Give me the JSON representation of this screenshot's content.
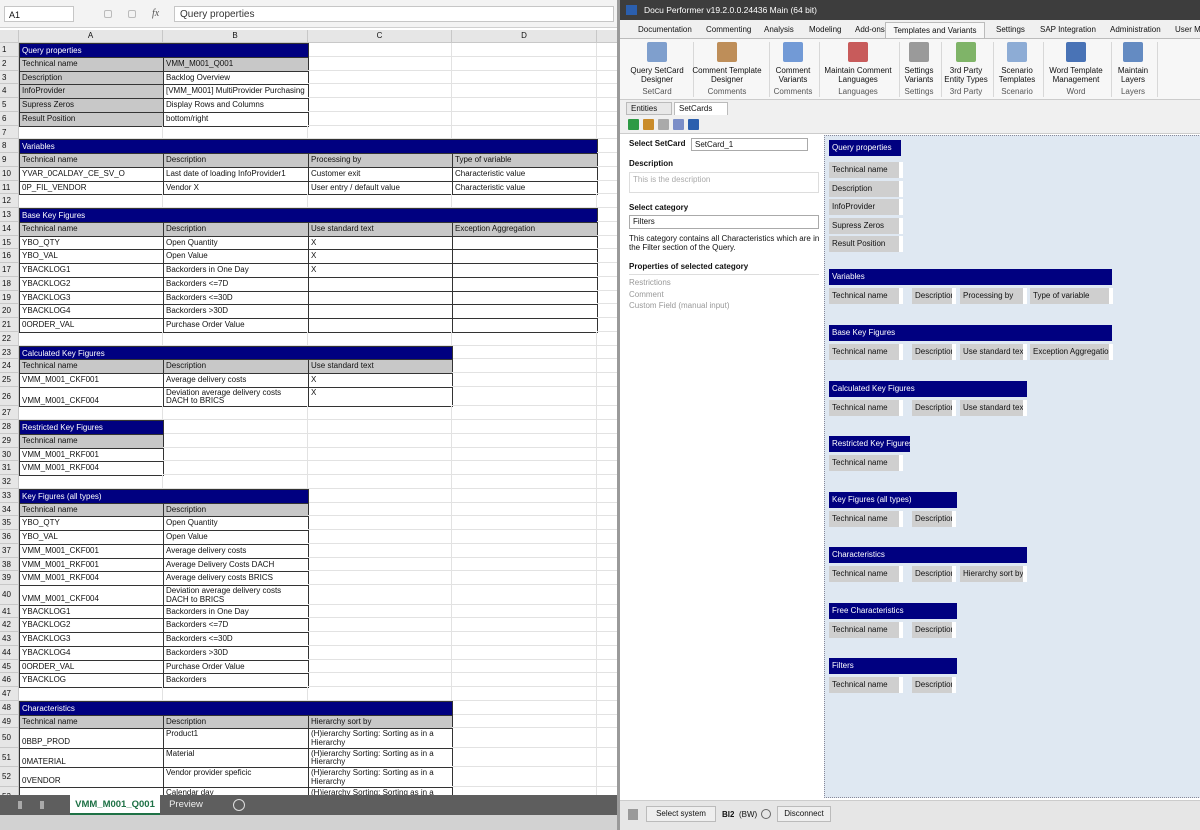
{
  "excel": {
    "name_box": "A1",
    "fx": "fx",
    "formula": "Query properties",
    "columns": [
      "A",
      "B",
      "C",
      "D"
    ],
    "rows": [
      {
        "num": 1,
        "cells": [
          "Query properties"
        ]
      },
      {
        "num": 2,
        "cells": [
          "Technical name",
          "VMM_M001_Q001"
        ]
      },
      {
        "num": 3,
        "cells": [
          "Description",
          "Backlog Overview"
        ]
      },
      {
        "num": 4,
        "cells": [
          "InfoProvider",
          "[VMM_M001] MultiProvider Purchasing"
        ]
      },
      {
        "num": 5,
        "cells": [
          "Supress Zeros",
          "Display Rows and Columns"
        ]
      },
      {
        "num": 6,
        "cells": [
          "Result Position",
          "bottom/right"
        ]
      },
      {
        "num": 7
      },
      {
        "num": 8,
        "cells": [
          "Variables"
        ]
      },
      {
        "num": 9,
        "cells": [
          "Technical name",
          "Description",
          "Processing by",
          "Type of variable"
        ]
      },
      {
        "num": 10,
        "cells": [
          "YVAR_0CALDAY_CE_SV_O",
          "Last date of loading InfoProvider1",
          "Customer exit",
          "Characteristic value"
        ]
      },
      {
        "num": 11,
        "cells": [
          "0P_FIL_VENDOR",
          "Vendor X",
          "User entry / default value",
          "Characteristic value"
        ]
      },
      {
        "num": 12
      },
      {
        "num": 13,
        "cells": [
          "Base Key Figures"
        ]
      },
      {
        "num": 14,
        "cells": [
          "Technical name",
          "Description",
          "Use standard text",
          "Exception Aggregation"
        ]
      },
      {
        "num": 15,
        "cells": [
          "YBO_QTY",
          "Open Quantity",
          "X"
        ]
      },
      {
        "num": 16,
        "cells": [
          "YBO_VAL",
          "Open Value",
          "X"
        ]
      },
      {
        "num": 17,
        "cells": [
          "YBACKLOG1",
          "Backorders in One Day",
          "X"
        ]
      },
      {
        "num": 18,
        "cells": [
          "YBACKLOG2",
          "Backorders <=7D"
        ]
      },
      {
        "num": 19,
        "cells": [
          "YBACKLOG3",
          "Backorders <=30D"
        ]
      },
      {
        "num": 20,
        "cells": [
          "YBACKLOG4",
          "Backorders >30D"
        ]
      },
      {
        "num": 21,
        "cells": [
          "0ORDER_VAL",
          "Purchase Order Value"
        ]
      },
      {
        "num": 22
      },
      {
        "num": 23,
        "cells": [
          "Calculated Key Figures"
        ]
      },
      {
        "num": 24,
        "cells": [
          "Technical name",
          "Description",
          "Use standard text"
        ]
      },
      {
        "num": 25,
        "cells": [
          "VMM_M001_CKF001",
          "Average delivery costs",
          "X"
        ]
      },
      {
        "num": 26,
        "cells": [
          "VMM_M001_CKF004",
          "Deviation average delivery costs DACH to BRICS",
          "X"
        ]
      },
      {
        "num": 27
      },
      {
        "num": 28,
        "cells": [
          "Restricted Key Figures"
        ]
      },
      {
        "num": 29,
        "cells": [
          "Technical name"
        ]
      },
      {
        "num": 30,
        "cells": [
          "VMM_M001_RKF001"
        ]
      },
      {
        "num": 31,
        "cells": [
          "VMM_M001_RKF004"
        ]
      },
      {
        "num": 32
      },
      {
        "num": 33,
        "cells": [
          "Key Figures (all types)"
        ]
      },
      {
        "num": 34,
        "cells": [
          "Technical name",
          "Description"
        ]
      },
      {
        "num": 35,
        "cells": [
          "YBO_QTY",
          "Open Quantity"
        ]
      },
      {
        "num": 36,
        "cells": [
          "YBO_VAL",
          "Open Value"
        ]
      },
      {
        "num": 37,
        "cells": [
          "VMM_M001_CKF001",
          "Average delivery costs"
        ]
      },
      {
        "num": 38,
        "cells": [
          "VMM_M001_RKF001",
          "Average Delivery Costs DACH"
        ]
      },
      {
        "num": 39,
        "cells": [
          "VMM_M001_RKF004",
          "Average delivery costs BRICS"
        ]
      },
      {
        "num": 40,
        "cells": [
          "VMM_M001_CKF004",
          "Deviation average delivery costs DACH to BRICS"
        ]
      },
      {
        "num": 41,
        "cells": [
          "YBACKLOG1",
          "Backorders in One Day"
        ]
      },
      {
        "num": 42,
        "cells": [
          "YBACKLOG2",
          "Backorders <=7D"
        ]
      },
      {
        "num": 43,
        "cells": [
          "YBACKLOG3",
          "Backorders <=30D"
        ]
      },
      {
        "num": 44,
        "cells": [
          "YBACKLOG4",
          "Backorders >30D"
        ]
      },
      {
        "num": 45,
        "cells": [
          "0ORDER_VAL",
          "Purchase Order Value"
        ]
      },
      {
        "num": 46,
        "cells": [
          "YBACKLOG",
          "Backorders"
        ]
      },
      {
        "num": 47
      },
      {
        "num": 48,
        "cells": [
          "Characteristics"
        ]
      },
      {
        "num": 49,
        "cells": [
          "Technical name",
          "Description",
          "Hierarchy sort by"
        ]
      },
      {
        "num": 50,
        "cells": [
          "0BBP_PROD",
          "Product1",
          "(H)ierarchy Sorting: Sorting as in a Hierarchy"
        ]
      },
      {
        "num": 51,
        "cells": [
          "0MATERIAL",
          "Material",
          "(H)ierarchy Sorting: Sorting as in a Hierarchy"
        ]
      },
      {
        "num": 52,
        "cells": [
          "0VENDOR",
          "Vendor provider speficic",
          "(H)ierarchy Sorting: Sorting as in a Hierarchy"
        ]
      },
      {
        "num": 53,
        "cells": [
          "0CALDAY",
          "Calendar day",
          "(H)ierarchy Sorting: Sorting as in a Hierarchy"
        ]
      }
    ],
    "sheet_tabs": [
      "VMM_M001_Q001",
      "Preview"
    ]
  },
  "app": {
    "title": "Docu Performer  v19.2.0.0.24436 Main (64 bit)",
    "menu": [
      "Documentation",
      "Commenting",
      "Analysis",
      "Modeling",
      "Add-ons",
      "Templates and Variants",
      "Settings",
      "SAP Integration",
      "Administration",
      "User Mana"
    ],
    "ribbon": [
      {
        "label": [
          "Query SetCard",
          "Designer"
        ],
        "group": "SetCard"
      },
      {
        "label": [
          "Comment Template",
          "Designer"
        ],
        "group": "Comments"
      },
      {
        "label": [
          "Comment",
          "Variants"
        ],
        "group": "Comments"
      },
      {
        "label": [
          "Maintain Comment",
          "Languages"
        ],
        "group": "Languages"
      },
      {
        "label": [
          "Settings",
          "Variants"
        ],
        "group": "Settings"
      },
      {
        "label": [
          "3rd Party",
          "Entity Types"
        ],
        "group": "3rd Party"
      },
      {
        "label": [
          "Scenario",
          "Templates"
        ],
        "group": "Scenario"
      },
      {
        "label": [
          "Word Template",
          "Management"
        ],
        "group": "Word"
      },
      {
        "label": [
          "Maintain",
          "Layers"
        ],
        "group": "Layers"
      }
    ],
    "doc_tabs": [
      "Entities",
      "SetCards"
    ],
    "panel": {
      "select_setcard": "Select SetCard",
      "setcard": "SetCard_1",
      "description": "Description",
      "description_placeholder": "This is the description",
      "select_category": "Select category",
      "category": "Filters",
      "category_info": "This category contains all Characteristics which are in the Filter section of the Query.",
      "properties": "Properties of selected category",
      "property_items": [
        "Restrictions",
        "Comment",
        "Custom Field (manual input)"
      ]
    },
    "blocks": [
      {
        "title": "Query properties",
        "fields": [
          "Technical name",
          "Description",
          "InfoProvider",
          "Supress Zeros",
          "Result Position"
        ]
      },
      {
        "title": "Variables",
        "fields": [
          "Technical name",
          "Description",
          "Processing by",
          "Type of variable"
        ]
      },
      {
        "title": "Base Key Figures",
        "fields": [
          "Technical name",
          "Description",
          "Use standard text",
          "Exception Aggregation"
        ]
      },
      {
        "title": "Calculated Key Figures",
        "fields": [
          "Technical name",
          "Description",
          "Use standard text"
        ]
      },
      {
        "title": "Restricted Key Figures",
        "fields": [
          "Technical name"
        ]
      },
      {
        "title": "Key Figures (all types)",
        "fields": [
          "Technical name",
          "Description"
        ]
      },
      {
        "title": "Characteristics",
        "fields": [
          "Technical name",
          "Description",
          "Hierarchy sort by"
        ]
      },
      {
        "title": "Free Characteristics",
        "fields": [
          "Technical name",
          "Description"
        ]
      },
      {
        "title": "Filters",
        "fields": [
          "Technical name",
          "Description"
        ]
      }
    ],
    "status": {
      "select_system": "Select system",
      "system": "BI2",
      "system_type": "(BW)",
      "disconnect": "Disconnect"
    }
  }
}
